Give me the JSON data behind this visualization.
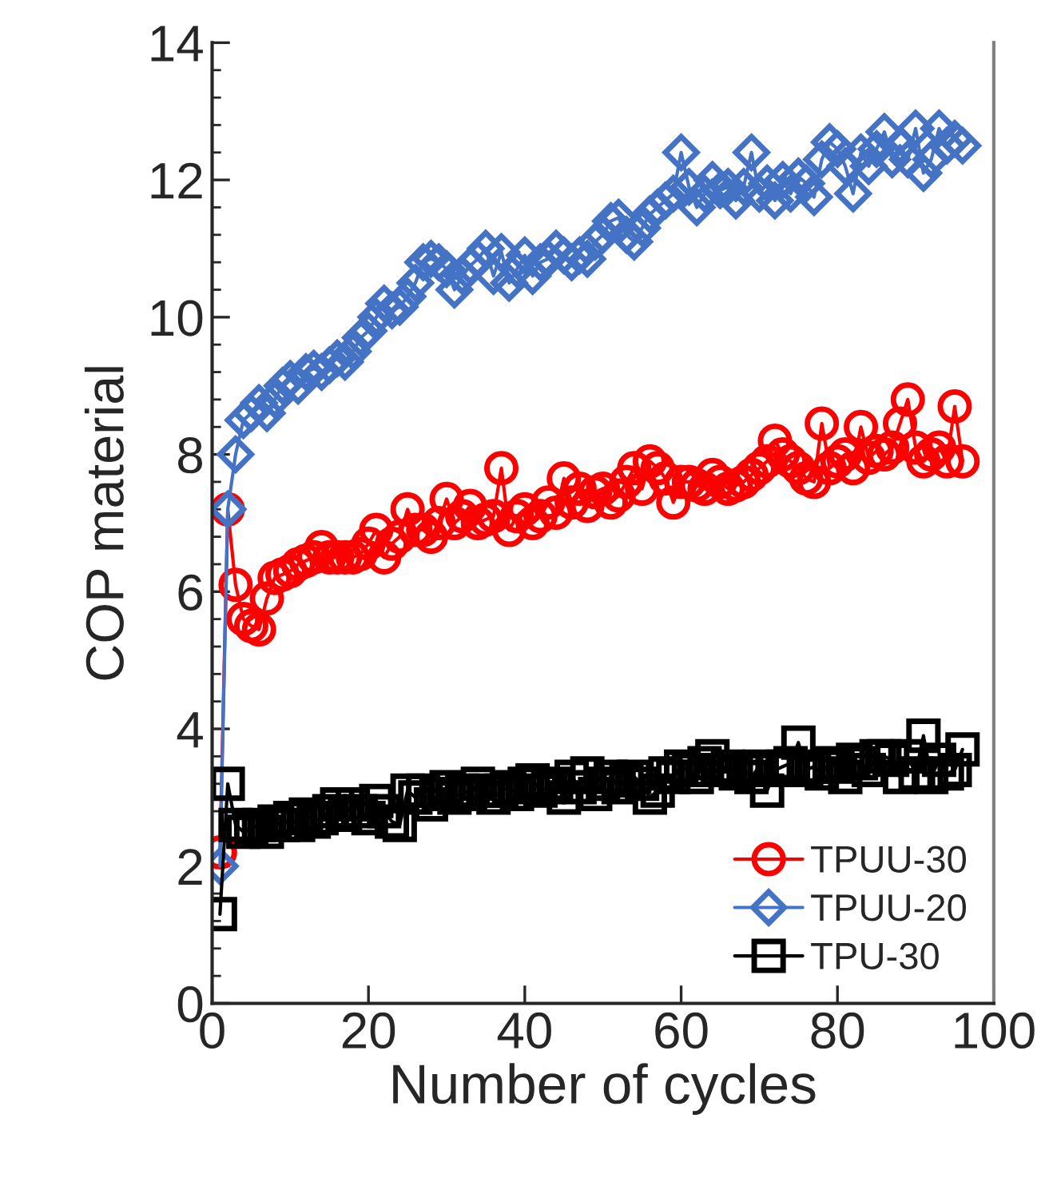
{
  "chart_data": {
    "type": "line",
    "xlabel": "Number of cycles",
    "ylabel": "COP material",
    "x": [
      1,
      2,
      3,
      4,
      5,
      6,
      7,
      8,
      9,
      10,
      11,
      12,
      13,
      14,
      15,
      16,
      17,
      18,
      19,
      20,
      21,
      22,
      23,
      24,
      25,
      26,
      27,
      28,
      29,
      30,
      31,
      32,
      33,
      34,
      35,
      36,
      37,
      38,
      39,
      40,
      41,
      42,
      43,
      44,
      45,
      46,
      47,
      48,
      49,
      50,
      51,
      52,
      53,
      54,
      55,
      56,
      57,
      58,
      59,
      60,
      61,
      62,
      63,
      64,
      65,
      66,
      67,
      68,
      69,
      70,
      71,
      72,
      73,
      74,
      75,
      76,
      77,
      78,
      79,
      80,
      81,
      82,
      83,
      84,
      85,
      86,
      87,
      88,
      89,
      90,
      91,
      92,
      93,
      94,
      95,
      96
    ],
    "series": [
      {
        "name": "TPUU-30",
        "color": "#ff0000",
        "marker": "circle",
        "values": [
          2.2,
          7.2,
          6.1,
          5.6,
          5.5,
          5.45,
          5.9,
          6.2,
          6.25,
          6.3,
          6.4,
          6.45,
          6.5,
          6.65,
          6.5,
          6.5,
          6.5,
          6.5,
          6.55,
          6.7,
          6.9,
          6.5,
          6.7,
          6.8,
          7.2,
          6.9,
          6.9,
          6.8,
          7.0,
          7.35,
          7.0,
          7.1,
          7.25,
          7.0,
          7.05,
          7.1,
          7.8,
          6.9,
          7.1,
          7.2,
          7.0,
          7.1,
          7.3,
          7.15,
          7.65,
          7.3,
          7.5,
          7.25,
          7.45,
          7.5,
          7.3,
          7.4,
          7.6,
          7.8,
          7.5,
          7.9,
          7.8,
          7.65,
          7.3,
          7.6,
          7.6,
          7.55,
          7.5,
          7.7,
          7.6,
          7.5,
          7.55,
          7.6,
          7.7,
          7.8,
          7.9,
          8.2,
          8.0,
          7.9,
          7.8,
          7.65,
          7.6,
          8.45,
          7.8,
          7.9,
          8.0,
          7.8,
          8.4,
          7.95,
          8.05,
          8.0,
          8.1,
          8.45,
          8.8,
          8.1,
          7.9,
          8.0,
          8.1,
          7.9,
          8.7,
          7.9
        ]
      },
      {
        "name": "TPUU-20",
        "color": "#4472c4",
        "marker": "diamond",
        "values": [
          2.0,
          7.2,
          8.0,
          8.5,
          8.6,
          8.75,
          8.6,
          8.8,
          9.0,
          9.1,
          9.0,
          9.2,
          9.25,
          9.2,
          9.3,
          9.4,
          9.35,
          9.5,
          9.7,
          9.8,
          10.0,
          10.2,
          10.1,
          10.15,
          10.3,
          10.5,
          10.8,
          10.85,
          10.8,
          10.7,
          10.4,
          10.6,
          10.75,
          10.85,
          11.0,
          10.6,
          10.95,
          10.5,
          10.7,
          10.9,
          10.6,
          10.8,
          10.85,
          11.0,
          10.9,
          10.8,
          10.9,
          10.85,
          11.1,
          11.2,
          11.4,
          11.45,
          11.2,
          11.1,
          11.3,
          11.5,
          11.6,
          11.7,
          11.8,
          12.4,
          11.9,
          11.6,
          11.8,
          12.0,
          11.85,
          11.9,
          11.7,
          11.9,
          12.4,
          11.8,
          11.95,
          11.7,
          12.0,
          11.8,
          12.05,
          11.95,
          11.75,
          12.3,
          12.55,
          12.45,
          12.2,
          11.8,
          12.4,
          12.2,
          12.45,
          12.7,
          12.3,
          12.5,
          12.3,
          12.75,
          12.1,
          12.3,
          12.75,
          12.5,
          12.6,
          12.5
        ]
      },
      {
        "name": "TPU-30",
        "color": "#000000",
        "marker": "square",
        "values": [
          1.3,
          3.2,
          2.6,
          2.5,
          2.55,
          2.6,
          2.5,
          2.65,
          2.6,
          2.7,
          2.6,
          2.75,
          2.65,
          2.7,
          2.8,
          2.9,
          2.75,
          2.9,
          2.8,
          2.7,
          2.95,
          2.8,
          2.65,
          2.6,
          3.1,
          3.0,
          3.1,
          2.9,
          3.05,
          3.15,
          3.0,
          3.1,
          3.05,
          3.2,
          3.1,
          3.0,
          3.1,
          3.15,
          3.05,
          3.2,
          3.25,
          3.1,
          3.15,
          3.2,
          3.0,
          3.3,
          3.15,
          3.35,
          3.05,
          3.2,
          3.3,
          3.15,
          3.25,
          3.3,
          3.2,
          3.0,
          3.1,
          3.35,
          3.3,
          3.45,
          3.4,
          3.3,
          3.5,
          3.6,
          3.4,
          3.45,
          3.35,
          3.4,
          3.3,
          3.45,
          3.1,
          3.4,
          3.45,
          3.5,
          3.8,
          3.4,
          3.45,
          3.35,
          3.5,
          3.45,
          3.3,
          3.55,
          3.5,
          3.4,
          3.6,
          3.6,
          3.55,
          3.3,
          3.6,
          3.35,
          3.9,
          3.3,
          3.55,
          3.35,
          3.4,
          3.7
        ]
      }
    ],
    "xlim": [
      0,
      100
    ],
    "xticks": [
      0,
      20,
      40,
      60,
      80,
      100
    ],
    "ylim": [
      0,
      14
    ],
    "yticks": [
      0,
      2,
      4,
      6,
      8,
      10,
      12,
      14
    ],
    "grid": false,
    "legend": "bottom right",
    "line_style": "solid"
  }
}
